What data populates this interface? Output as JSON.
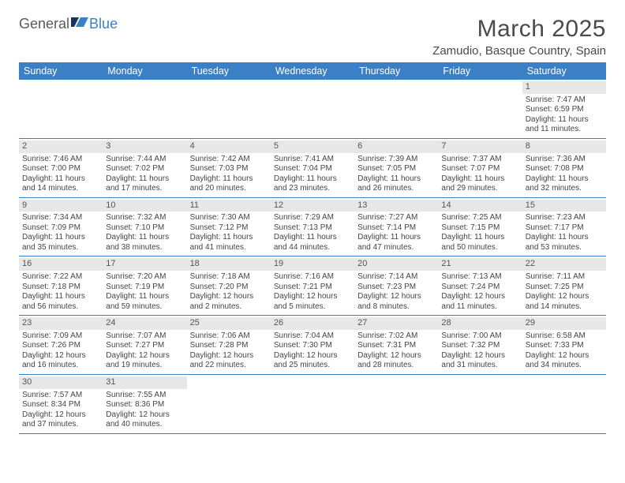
{
  "logo": {
    "text1": "General",
    "text2": "Blue"
  },
  "header": {
    "title": "March 2025",
    "location": "Zamudio, Basque Country, Spain"
  },
  "dayNames": [
    "Sunday",
    "Monday",
    "Tuesday",
    "Wednesday",
    "Thursday",
    "Friday",
    "Saturday"
  ],
  "colors": {
    "headerBg": "#3b7fc4",
    "headerText": "#ffffff",
    "daynumBg": "#e7e7e7",
    "text": "#4a4a4a",
    "border": "#3b7fc4"
  },
  "typography": {
    "title_fontsize": 30,
    "location_fontsize": 15,
    "dayhead_fontsize": 12.5,
    "cell_fontsize": 10
  },
  "layout": {
    "columns": 7,
    "rows": 6,
    "cell_min_height": 72
  },
  "weeks": [
    [
      null,
      null,
      null,
      null,
      null,
      null,
      {
        "n": "1",
        "sr": "Sunrise: 7:47 AM",
        "ss": "Sunset: 6:59 PM",
        "dl": "Daylight: 11 hours and 11 minutes."
      }
    ],
    [
      {
        "n": "2",
        "sr": "Sunrise: 7:46 AM",
        "ss": "Sunset: 7:00 PM",
        "dl": "Daylight: 11 hours and 14 minutes."
      },
      {
        "n": "3",
        "sr": "Sunrise: 7:44 AM",
        "ss": "Sunset: 7:02 PM",
        "dl": "Daylight: 11 hours and 17 minutes."
      },
      {
        "n": "4",
        "sr": "Sunrise: 7:42 AM",
        "ss": "Sunset: 7:03 PM",
        "dl": "Daylight: 11 hours and 20 minutes."
      },
      {
        "n": "5",
        "sr": "Sunrise: 7:41 AM",
        "ss": "Sunset: 7:04 PM",
        "dl": "Daylight: 11 hours and 23 minutes."
      },
      {
        "n": "6",
        "sr": "Sunrise: 7:39 AM",
        "ss": "Sunset: 7:05 PM",
        "dl": "Daylight: 11 hours and 26 minutes."
      },
      {
        "n": "7",
        "sr": "Sunrise: 7:37 AM",
        "ss": "Sunset: 7:07 PM",
        "dl": "Daylight: 11 hours and 29 minutes."
      },
      {
        "n": "8",
        "sr": "Sunrise: 7:36 AM",
        "ss": "Sunset: 7:08 PM",
        "dl": "Daylight: 11 hours and 32 minutes."
      }
    ],
    [
      {
        "n": "9",
        "sr": "Sunrise: 7:34 AM",
        "ss": "Sunset: 7:09 PM",
        "dl": "Daylight: 11 hours and 35 minutes."
      },
      {
        "n": "10",
        "sr": "Sunrise: 7:32 AM",
        "ss": "Sunset: 7:10 PM",
        "dl": "Daylight: 11 hours and 38 minutes."
      },
      {
        "n": "11",
        "sr": "Sunrise: 7:30 AM",
        "ss": "Sunset: 7:12 PM",
        "dl": "Daylight: 11 hours and 41 minutes."
      },
      {
        "n": "12",
        "sr": "Sunrise: 7:29 AM",
        "ss": "Sunset: 7:13 PM",
        "dl": "Daylight: 11 hours and 44 minutes."
      },
      {
        "n": "13",
        "sr": "Sunrise: 7:27 AM",
        "ss": "Sunset: 7:14 PM",
        "dl": "Daylight: 11 hours and 47 minutes."
      },
      {
        "n": "14",
        "sr": "Sunrise: 7:25 AM",
        "ss": "Sunset: 7:15 PM",
        "dl": "Daylight: 11 hours and 50 minutes."
      },
      {
        "n": "15",
        "sr": "Sunrise: 7:23 AM",
        "ss": "Sunset: 7:17 PM",
        "dl": "Daylight: 11 hours and 53 minutes."
      }
    ],
    [
      {
        "n": "16",
        "sr": "Sunrise: 7:22 AM",
        "ss": "Sunset: 7:18 PM",
        "dl": "Daylight: 11 hours and 56 minutes."
      },
      {
        "n": "17",
        "sr": "Sunrise: 7:20 AM",
        "ss": "Sunset: 7:19 PM",
        "dl": "Daylight: 11 hours and 59 minutes."
      },
      {
        "n": "18",
        "sr": "Sunrise: 7:18 AM",
        "ss": "Sunset: 7:20 PM",
        "dl": "Daylight: 12 hours and 2 minutes."
      },
      {
        "n": "19",
        "sr": "Sunrise: 7:16 AM",
        "ss": "Sunset: 7:21 PM",
        "dl": "Daylight: 12 hours and 5 minutes."
      },
      {
        "n": "20",
        "sr": "Sunrise: 7:14 AM",
        "ss": "Sunset: 7:23 PM",
        "dl": "Daylight: 12 hours and 8 minutes."
      },
      {
        "n": "21",
        "sr": "Sunrise: 7:13 AM",
        "ss": "Sunset: 7:24 PM",
        "dl": "Daylight: 12 hours and 11 minutes."
      },
      {
        "n": "22",
        "sr": "Sunrise: 7:11 AM",
        "ss": "Sunset: 7:25 PM",
        "dl": "Daylight: 12 hours and 14 minutes."
      }
    ],
    [
      {
        "n": "23",
        "sr": "Sunrise: 7:09 AM",
        "ss": "Sunset: 7:26 PM",
        "dl": "Daylight: 12 hours and 16 minutes."
      },
      {
        "n": "24",
        "sr": "Sunrise: 7:07 AM",
        "ss": "Sunset: 7:27 PM",
        "dl": "Daylight: 12 hours and 19 minutes."
      },
      {
        "n": "25",
        "sr": "Sunrise: 7:06 AM",
        "ss": "Sunset: 7:28 PM",
        "dl": "Daylight: 12 hours and 22 minutes."
      },
      {
        "n": "26",
        "sr": "Sunrise: 7:04 AM",
        "ss": "Sunset: 7:30 PM",
        "dl": "Daylight: 12 hours and 25 minutes."
      },
      {
        "n": "27",
        "sr": "Sunrise: 7:02 AM",
        "ss": "Sunset: 7:31 PM",
        "dl": "Daylight: 12 hours and 28 minutes."
      },
      {
        "n": "28",
        "sr": "Sunrise: 7:00 AM",
        "ss": "Sunset: 7:32 PM",
        "dl": "Daylight: 12 hours and 31 minutes."
      },
      {
        "n": "29",
        "sr": "Sunrise: 6:58 AM",
        "ss": "Sunset: 7:33 PM",
        "dl": "Daylight: 12 hours and 34 minutes."
      }
    ],
    [
      {
        "n": "30",
        "sr": "Sunrise: 7:57 AM",
        "ss": "Sunset: 8:34 PM",
        "dl": "Daylight: 12 hours and 37 minutes."
      },
      {
        "n": "31",
        "sr": "Sunrise: 7:55 AM",
        "ss": "Sunset: 8:36 PM",
        "dl": "Daylight: 12 hours and 40 minutes."
      },
      null,
      null,
      null,
      null,
      null
    ]
  ]
}
